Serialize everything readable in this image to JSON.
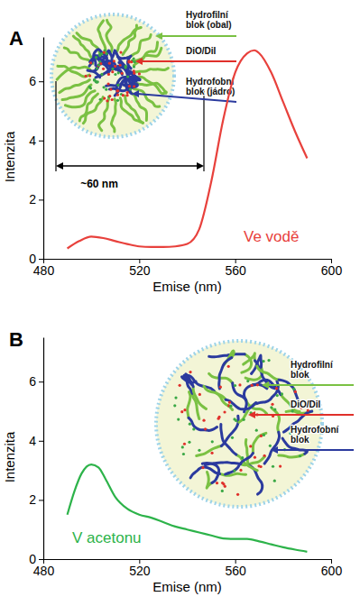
{
  "chart_data": [
    {
      "type": "line",
      "title": "A",
      "x_label": "Emise (nm)",
      "y_label": "Intenzita",
      "xlim": [
        480,
        600
      ],
      "xticks": [
        480,
        520,
        560,
        600
      ],
      "ylim": [
        0,
        7.5
      ],
      "yticks": [
        0,
        2,
        4,
        6
      ],
      "x": [
        490,
        495,
        500,
        505,
        510,
        515,
        520,
        525,
        530,
        535,
        540,
        545,
        550,
        555,
        560,
        565,
        568,
        570,
        575,
        580,
        585,
        590
      ],
      "series": [
        {
          "color": "#e8413c",
          "values": [
            0.35,
            0.6,
            0.75,
            0.7,
            0.6,
            0.5,
            0.42,
            0.4,
            0.4,
            0.42,
            0.5,
            1.0,
            2.6,
            4.7,
            6.3,
            6.95,
            7.05,
            6.95,
            6.3,
            5.3,
            4.3,
            3.4
          ]
        }
      ],
      "annotations": [
        "Ve vodě"
      ],
      "diagram": {
        "labels": [
          "Hydrofilní\nblok (obal)",
          "DiO/DiI",
          "Hydrofobní\nblok (jádro)"
        ],
        "size": "~60 nm"
      }
    },
    {
      "type": "line",
      "title": "B",
      "x_label": "Emise (nm)",
      "y_label": "Intenzita",
      "xlim": [
        480,
        600
      ],
      "xticks": [
        480,
        520,
        560,
        600
      ],
      "ylim": [
        0,
        7.5
      ],
      "yticks": [
        0,
        2,
        4,
        6
      ],
      "x": [
        490,
        493,
        496,
        500,
        503,
        506,
        510,
        515,
        520,
        525,
        530,
        535,
        540,
        545,
        550,
        555,
        560,
        565,
        570,
        575,
        580,
        585,
        590
      ],
      "series": [
        {
          "color": "#2db34a",
          "values": [
            1.5,
            2.3,
            2.9,
            3.2,
            3.1,
            2.7,
            2.1,
            1.7,
            1.5,
            1.4,
            1.25,
            1.1,
            1.0,
            0.9,
            0.8,
            0.7,
            0.68,
            0.68,
            0.6,
            0.5,
            0.4,
            0.32,
            0.25
          ]
        }
      ],
      "annotations": [
        "V acetonu"
      ],
      "diagram": {
        "labels": [
          "Hydrofilní\nblok",
          "DiO/DiI",
          "Hydrofobní\nblok"
        ]
      }
    }
  ]
}
